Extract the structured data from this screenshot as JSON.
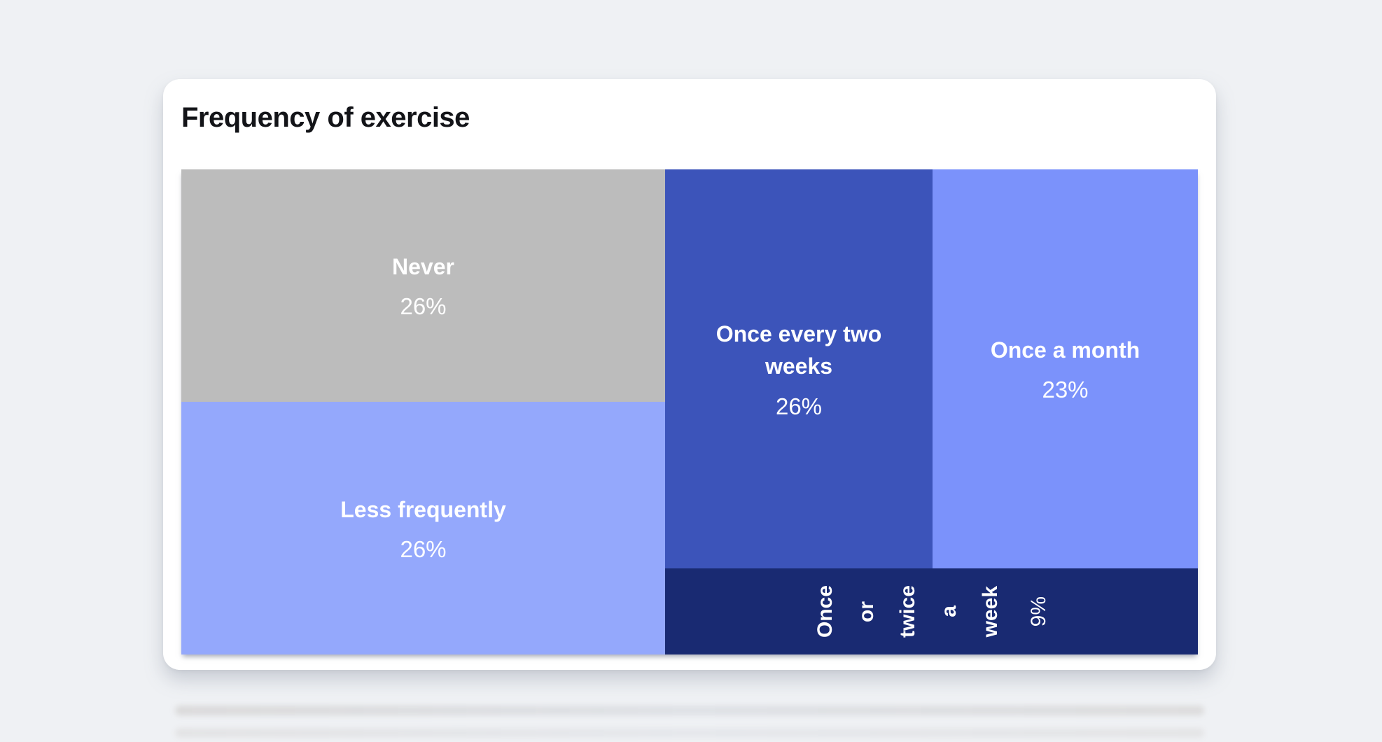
{
  "theme": {
    "page_background": "#eff1f4",
    "card_background": "#ffffff",
    "title_color": "#131418",
    "cell_text_color": "#ffffff"
  },
  "chart_data": {
    "type": "treemap",
    "title": "Frequency of exercise",
    "unit": "%",
    "legend": "none",
    "cells": [
      {
        "id": "never",
        "label": "Never",
        "value": 26,
        "value_label": "26%",
        "color": "#bcbcbc",
        "label_orientation": "horizontal"
      },
      {
        "id": "less-frequently",
        "label": "Less frequently",
        "value": 26,
        "value_label": "26%",
        "color": "#94a8fc",
        "label_orientation": "horizontal"
      },
      {
        "id": "once-every-two-weeks",
        "label": "Once every two weeks",
        "value": 26,
        "value_label": "26%",
        "color": "#3c54ba",
        "label_orientation": "horizontal"
      },
      {
        "id": "once-a-month",
        "label": "Once a month",
        "value": 23,
        "value_label": "23%",
        "color": "#7b92fb",
        "label_orientation": "horizontal"
      },
      {
        "id": "once-or-twice-a-week",
        "label": "Once or twice a week",
        "value": 9,
        "value_label": "9%",
        "color": "#192a72",
        "label_orientation": "vertical"
      }
    ]
  }
}
